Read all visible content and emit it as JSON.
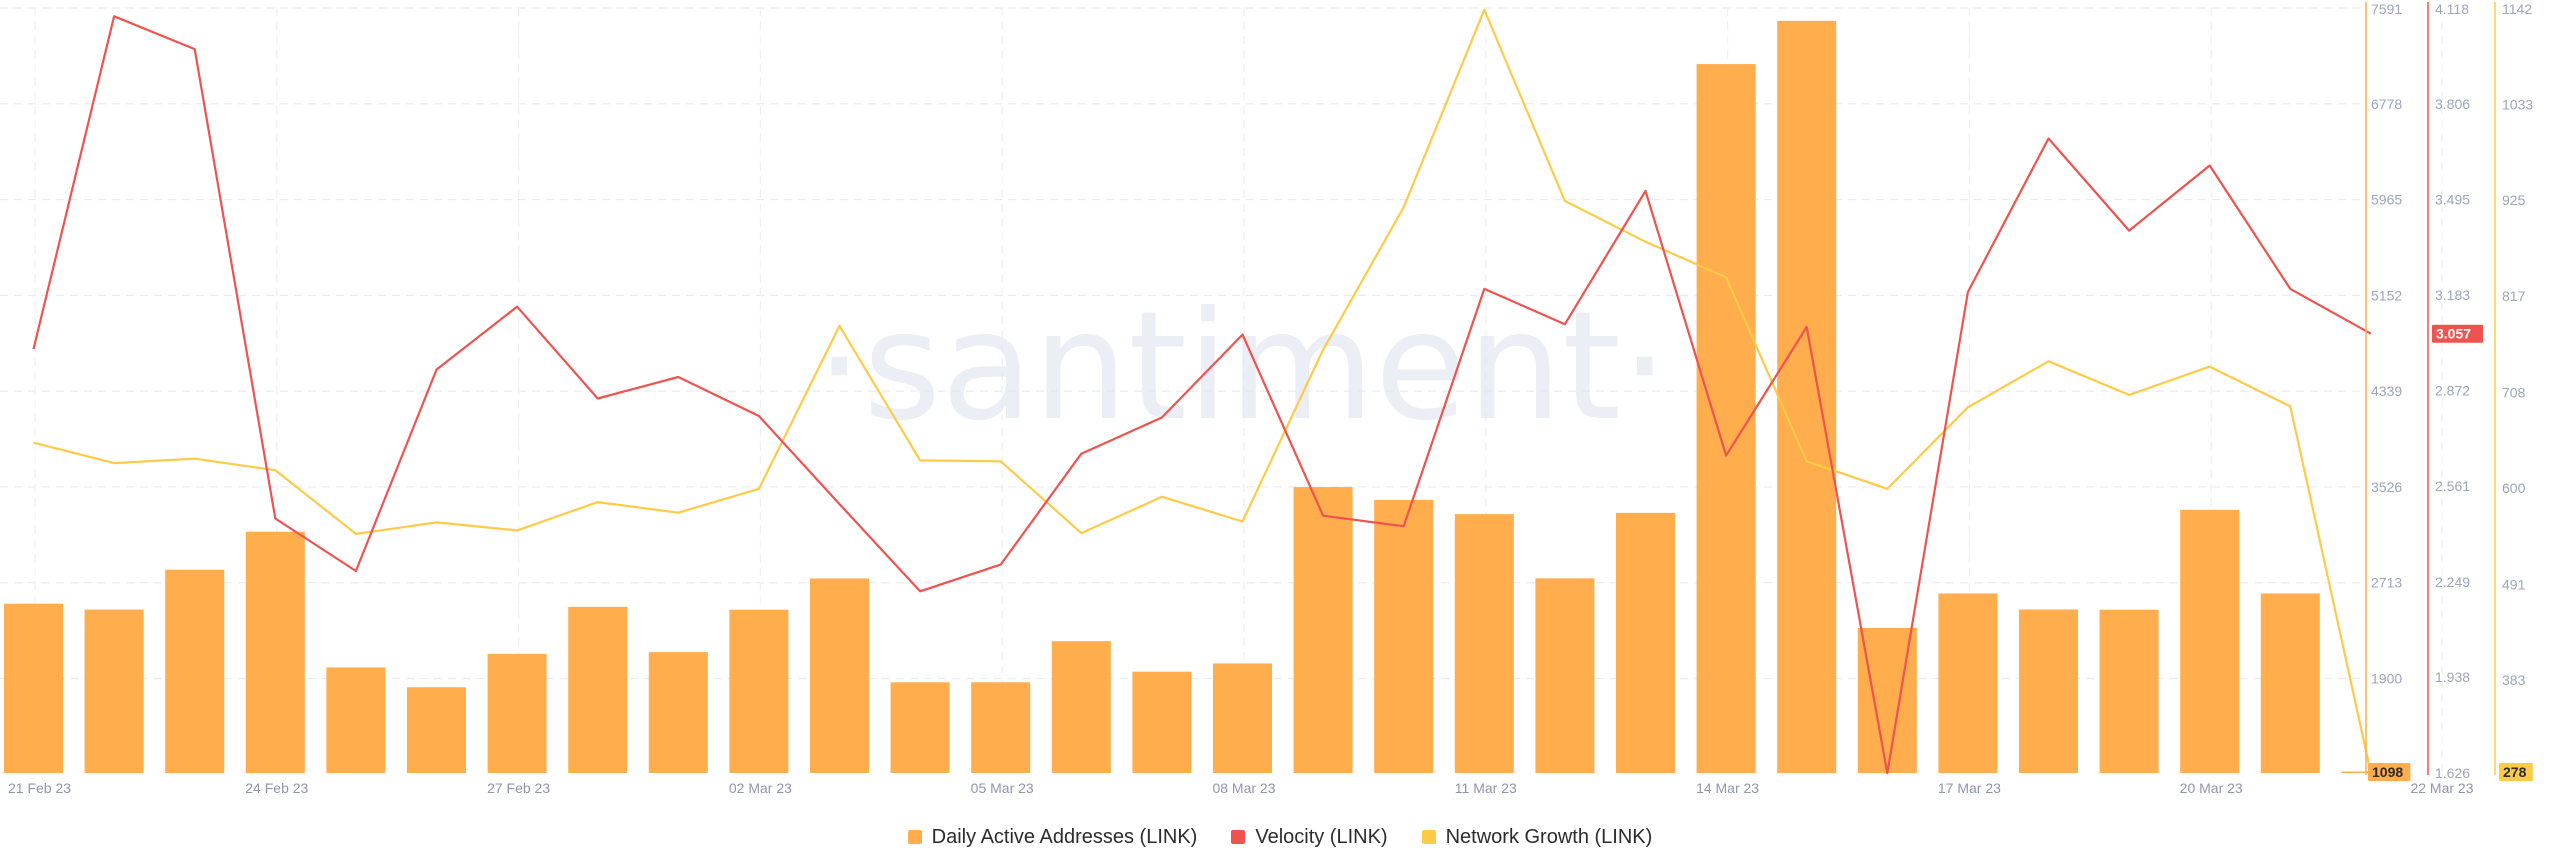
{
  "chart_data": {
    "type": "bar+line",
    "watermark": "·santiment·",
    "x_tick_labels": [
      "21 Feb 23",
      "24 Feb 23",
      "27 Feb 23",
      "02 Mar 23",
      "05 Mar 23",
      "08 Mar 23",
      "11 Mar 23",
      "14 Mar 23",
      "17 Mar 23",
      "20 Mar 23",
      "22 Mar 23"
    ],
    "y_axes": {
      "daa": {
        "min": 1098,
        "max": 7591,
        "ticks": [
          "7591",
          "6778",
          "5965",
          "5152",
          "4339",
          "3526",
          "2713",
          "1900"
        ],
        "current": "1098",
        "color": "#ffad4d"
      },
      "velocity": {
        "min": 1.626,
        "max": 4.118,
        "ticks": [
          "4.118",
          "3.806",
          "3.495",
          "3.183",
          "2.872",
          "2.561",
          "2.249",
          "1.938",
          "1.626"
        ],
        "current": "3.057",
        "color": "#ef5350"
      },
      "network_growth": {
        "min": 278,
        "max": 1142,
        "ticks": [
          "1142",
          "1033",
          "925",
          "817",
          "708",
          "600",
          "491",
          "383"
        ],
        "current": "278",
        "color": "#ffcb47"
      }
    },
    "series": [
      {
        "name": "Daily Active Addresses (LINK)",
        "type": "bar",
        "axis": "daa",
        "color": "#ffad4d",
        "values": [
          2535,
          2485,
          2824,
          3146,
          1994,
          1826,
          2109,
          2508,
          2124,
          2484,
          2749,
          1868,
          1868,
          2217,
          1958,
          2028,
          3525,
          3416,
          3295,
          2750,
          3306,
          7115,
          7482,
          2329,
          2622,
          2486,
          2484,
          3332,
          2622,
          1098
        ]
      },
      {
        "name": "Velocity (LINK)",
        "type": "line",
        "axis": "velocity",
        "color": "#ef5350",
        "values": [
          3.007,
          4.091,
          3.984,
          2.455,
          2.284,
          2.94,
          3.145,
          2.846,
          2.916,
          2.789,
          2.502,
          2.218,
          2.305,
          2.666,
          2.784,
          3.054,
          2.464,
          2.43,
          3.203,
          3.088,
          3.522,
          2.66,
          3.079,
          1.626,
          3.193,
          3.693,
          3.393,
          3.605,
          3.203,
          3.057
        ]
      },
      {
        "name": "Network Growth (LINK)",
        "type": "line",
        "axis": "network_growth",
        "color": "#ffcb47",
        "values": [
          651,
          628,
          633,
          620,
          548,
          561,
          552,
          584,
          572,
          599,
          783,
          631,
          630,
          549,
          590,
          562,
          756,
          917,
          1140,
          924,
          878,
          838,
          630,
          599,
          691,
          743,
          705,
          737,
          692,
          278
        ]
      }
    ],
    "legend_position": "bottom-center",
    "grid": true
  }
}
